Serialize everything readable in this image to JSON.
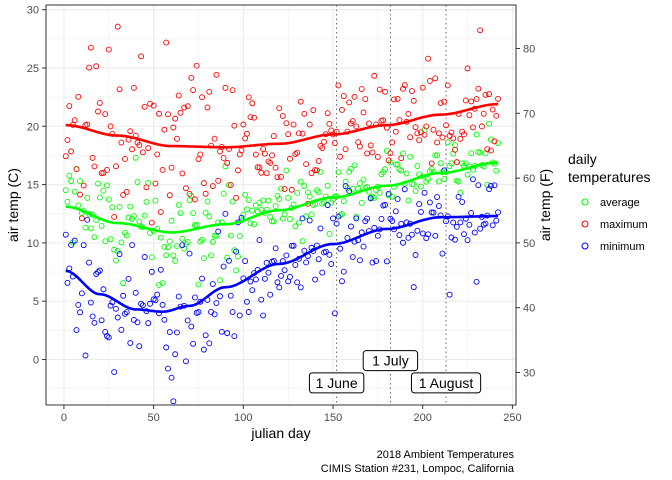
{
  "chart_data": {
    "type": "scatter",
    "xlabel": "julian day",
    "ylabel": "air temp (C)",
    "y2label": "air temp (F)",
    "xlim": [
      -10,
      252
    ],
    "ylim": [
      -3.9,
      30.4
    ],
    "xticks": [
      0,
      50,
      100,
      150,
      200,
      250
    ],
    "yticks": [
      0,
      5,
      10,
      15,
      20,
      25,
      30
    ],
    "y2ticks": [
      30,
      40,
      50,
      60,
      70,
      80
    ],
    "grid": true,
    "legend": {
      "title_lines": [
        "daily",
        "temperatures"
      ],
      "placement": "right",
      "entries": [
        {
          "label": "average",
          "color": "#00ff00"
        },
        {
          "label": "maximum",
          "color": "#ff0000"
        },
        {
          "label": "minimum",
          "color": "#0000ff"
        }
      ]
    },
    "caption_lines": [
      "2018 Ambient Temperatures",
      "CIMIS Station #231, Lompoc, California"
    ],
    "vlines": [
      152,
      182,
      213
    ],
    "annotations": [
      {
        "label": "1 June",
        "x": 152,
        "y": -2.0
      },
      {
        "label": "1 July",
        "x": 182,
        "y": -0.1
      },
      {
        "label": "1 August",
        "x": 213,
        "y": -2.0
      }
    ],
    "series": [
      {
        "name": "average",
        "color": "#00ff00",
        "smooth_x": [
          1,
          30,
          60,
          90,
          120,
          150,
          180,
          210,
          242
        ],
        "smooth_y": [
          13.1,
          11.7,
          10.9,
          11.6,
          12.8,
          13.9,
          14.9,
          16.0,
          16.9
        ]
      },
      {
        "name": "maximum",
        "color": "#ff0000",
        "smooth_x": [
          1,
          30,
          60,
          90,
          120,
          150,
          180,
          210,
          242
        ],
        "smooth_y": [
          20.1,
          19.2,
          18.3,
          18.2,
          18.5,
          19.3,
          20.1,
          21.0,
          21.9
        ]
      },
      {
        "name": "minimum",
        "color": "#0000ff",
        "smooth_x": [
          1,
          20,
          40,
          55,
          70,
          90,
          120,
          150,
          180,
          210,
          242
        ],
        "smooth_y": [
          7.6,
          5.6,
          4.3,
          4.1,
          4.6,
          6.2,
          8.2,
          9.9,
          11.2,
          12.2,
          12.3
        ]
      }
    ],
    "scatter_seed": 231,
    "scatter_days": [
      1,
      242
    ],
    "scatter_spread": {
      "average": 1.6,
      "maximum": 2.6,
      "minimum": 2.3
    }
  }
}
